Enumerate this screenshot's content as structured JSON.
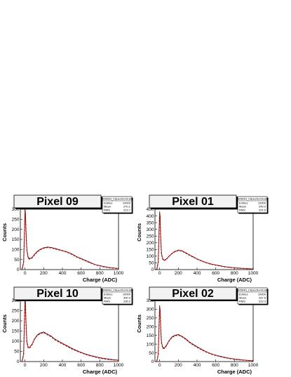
{
  "chart_data": [
    {
      "type": "line",
      "title": "Pixel 09",
      "xlabel": "Charge (ADC)",
      "ylabel": "Counts",
      "xlim": [
        -50,
        1000
      ],
      "ylim": [
        0,
        300
      ],
      "xticks": [
        0,
        200,
        400,
        600,
        800,
        1000
      ],
      "yticks": [
        0,
        50,
        100,
        150,
        200,
        250,
        300
      ],
      "stats": {
        "name": "GMSNG_hSpectrumCalib",
        "entries_label": "Entries",
        "entries": "10000",
        "mean_label": "Mean",
        "mean": "270.1",
        "rms_label": "RMS",
        "rms": "213.7"
      },
      "series": [
        {
          "style": "data",
          "color": "#000000",
          "x": [
            -30,
            -15,
            -5,
            0,
            5,
            10,
            20,
            35,
            50,
            75,
            100,
            130,
            160,
            200,
            240,
            280,
            320,
            360,
            400,
            450,
            500,
            550,
            600,
            650,
            700,
            750,
            800,
            850,
            900,
            950,
            1000
          ],
          "y": [
            5,
            40,
            200,
            300,
            280,
            200,
            100,
            60,
            55,
            60,
            75,
            90,
            100,
            108,
            112,
            110,
            105,
            100,
            95,
            88,
            78,
            65,
            55,
            45,
            35,
            25,
            20,
            15,
            10,
            8,
            6
          ]
        },
        {
          "style": "fit",
          "color": "#cc0000",
          "x": [
            -30,
            -15,
            -5,
            0,
            5,
            10,
            20,
            35,
            50,
            75,
            100,
            130,
            160,
            200,
            240,
            280,
            320,
            360,
            400,
            450,
            500,
            550,
            600,
            650,
            700,
            750,
            800,
            850,
            900,
            950,
            1000
          ],
          "y": [
            3,
            35,
            195,
            295,
            275,
            195,
            95,
            55,
            52,
            58,
            72,
            88,
            98,
            106,
            110,
            108,
            103,
            98,
            93,
            86,
            76,
            63,
            53,
            43,
            33,
            24,
            18,
            13,
            9,
            7,
            5
          ]
        }
      ]
    },
    {
      "type": "line",
      "title": "Pixel 01",
      "xlabel": "Charge (ADC)",
      "ylabel": "Counts",
      "xlim": [
        -50,
        1000
      ],
      "ylim": [
        0,
        450
      ],
      "xticks": [
        0,
        200,
        400,
        600,
        800,
        1000
      ],
      "yticks": [
        0,
        50,
        100,
        150,
        200,
        250,
        300,
        350,
        400,
        450
      ],
      "stats": {
        "name": "GMSNG_hSpectrumCalib",
        "entries_label": "Entries",
        "entries": "10000",
        "mean_label": "Mean",
        "mean": "249.0",
        "rms_label": "RMS",
        "rms": "224.5"
      },
      "series": [
        {
          "style": "data",
          "color": "#000000",
          "x": [
            -30,
            -15,
            -5,
            0,
            5,
            10,
            20,
            35,
            50,
            75,
            100,
            130,
            160,
            200,
            240,
            280,
            320,
            360,
            400,
            450,
            500,
            550,
            600,
            650,
            700,
            750,
            800,
            850,
            900,
            950,
            1000
          ],
          "y": [
            5,
            60,
            320,
            430,
            400,
            260,
            120,
            80,
            70,
            80,
            100,
            120,
            135,
            145,
            140,
            125,
            110,
            95,
            80,
            65,
            52,
            42,
            35,
            28,
            22,
            18,
            14,
            11,
            9,
            7,
            5
          ]
        },
        {
          "style": "fit",
          "color": "#cc0000",
          "x": [
            -30,
            -15,
            -5,
            0,
            5,
            10,
            20,
            35,
            50,
            75,
            100,
            130,
            160,
            200,
            240,
            280,
            320,
            360,
            400,
            450,
            500,
            550,
            600,
            650,
            700,
            750,
            800,
            850,
            900,
            950,
            1000
          ],
          "y": [
            3,
            55,
            310,
            420,
            390,
            250,
            115,
            75,
            68,
            78,
            98,
            118,
            132,
            142,
            137,
            122,
            107,
            92,
            78,
            63,
            50,
            40,
            33,
            26,
            20,
            16,
            12,
            10,
            8,
            6,
            4
          ]
        }
      ]
    },
    {
      "type": "line",
      "title": "Pixel 10",
      "xlabel": "Charge (ADC)",
      "ylabel": "Counts",
      "xlim": [
        -50,
        1000
      ],
      "ylim": [
        0,
        300
      ],
      "xticks": [
        0,
        200,
        400,
        600,
        800,
        1000
      ],
      "yticks": [
        0,
        50,
        100,
        150,
        200,
        250,
        300
      ],
      "stats": {
        "name": "GMSNG_hSpectrumCalib",
        "entries_label": "Entries",
        "entries": "10000",
        "mean_label": "Mean",
        "mean": "300.2",
        "rms_label": "RMS",
        "rms": "236.0"
      },
      "series": [
        {
          "style": "data",
          "color": "#000000",
          "x": [
            -30,
            -15,
            -5,
            0,
            5,
            10,
            20,
            35,
            50,
            75,
            100,
            130,
            160,
            200,
            240,
            280,
            320,
            360,
            400,
            450,
            500,
            550,
            600,
            650,
            700,
            750,
            800,
            850,
            900,
            950,
            1000
          ],
          "y": [
            5,
            40,
            220,
            320,
            290,
            200,
            100,
            70,
            70,
            85,
            110,
            130,
            140,
            145,
            135,
            125,
            110,
            100,
            90,
            78,
            65,
            55,
            45,
            37,
            30,
            24,
            19,
            15,
            12,
            9,
            7
          ]
        },
        {
          "style": "fit",
          "color": "#cc0000",
          "x": [
            -30,
            -15,
            -5,
            0,
            5,
            10,
            20,
            35,
            50,
            75,
            100,
            130,
            160,
            200,
            240,
            280,
            320,
            360,
            400,
            450,
            500,
            550,
            600,
            650,
            700,
            750,
            800,
            850,
            900,
            950,
            1000
          ],
          "y": [
            3,
            35,
            210,
            310,
            280,
            195,
            95,
            66,
            67,
            83,
            108,
            127,
            137,
            142,
            132,
            122,
            107,
            97,
            87,
            75,
            62,
            52,
            43,
            35,
            28,
            22,
            17,
            13,
            10,
            8,
            6
          ]
        }
      ]
    },
    {
      "type": "line",
      "title": "Pixel 02",
      "xlabel": "Charge (ADC)",
      "ylabel": "Counts",
      "xlim": [
        -50,
        1000
      ],
      "ylim": [
        0,
        350
      ],
      "xticks": [
        0,
        200,
        400,
        600,
        800,
        1000
      ],
      "yticks": [
        0,
        50,
        100,
        150,
        200,
        250,
        300,
        350
      ],
      "stats": {
        "name": "GMSNG_hSpectrumCalib",
        "entries_label": "Entries",
        "entries": "10000",
        "mean_label": "Mean",
        "mean": "267.6",
        "rms_label": "RMS",
        "rms": "223.3"
      },
      "series": [
        {
          "style": "data",
          "color": "#000000",
          "x": [
            -30,
            -15,
            -5,
            0,
            5,
            10,
            20,
            35,
            50,
            75,
            100,
            130,
            160,
            200,
            240,
            280,
            320,
            360,
            400,
            450,
            500,
            550,
            600,
            650,
            700,
            750,
            800,
            850,
            900,
            950,
            1000
          ],
          "y": [
            5,
            45,
            240,
            320,
            300,
            210,
            110,
            80,
            78,
            95,
            120,
            140,
            150,
            155,
            145,
            130,
            112,
            98,
            85,
            70,
            56,
            45,
            37,
            30,
            24,
            19,
            15,
            12,
            9,
            7,
            5
          ]
        },
        {
          "style": "fit",
          "color": "#cc0000",
          "x": [
            -30,
            -15,
            -5,
            0,
            5,
            10,
            20,
            35,
            50,
            75,
            100,
            130,
            160,
            200,
            240,
            280,
            320,
            360,
            400,
            450,
            500,
            550,
            600,
            650,
            700,
            750,
            800,
            850,
            900,
            950,
            1000
          ],
          "y": [
            3,
            40,
            230,
            310,
            290,
            205,
            105,
            76,
            75,
            92,
            117,
            137,
            147,
            152,
            142,
            127,
            109,
            95,
            82,
            67,
            54,
            43,
            35,
            28,
            22,
            17,
            13,
            10,
            8,
            6,
            4
          ]
        }
      ]
    }
  ]
}
